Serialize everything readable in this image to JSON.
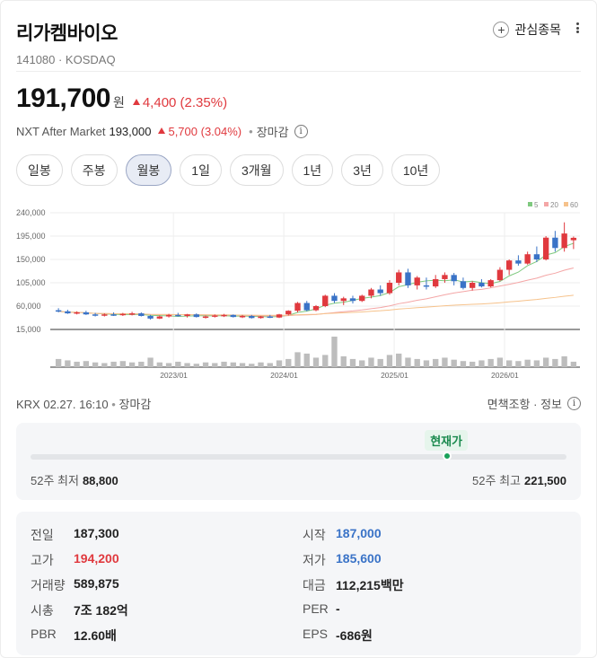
{
  "stock": {
    "name": "리가켐바이오",
    "code_market": "141080 · KOSDAQ",
    "watch_label": "관심종목",
    "price": "191,700",
    "unit": "원",
    "change": "4,400 (2.35%)",
    "nxt": {
      "label": "NXT After Market",
      "price": "193,000",
      "change": "5,700 (3.04%)",
      "status": "장마감"
    }
  },
  "tabs": [
    "일봉",
    "주봉",
    "월봉",
    "1일",
    "3개월",
    "1년",
    "3년",
    "10년"
  ],
  "active_tab": "월봉",
  "source": {
    "left": "KRX 02.27. 16:10",
    "status": "장마감",
    "right": "면책조항 · 정보"
  },
  "range52": {
    "current_label": "현재가",
    "low_label": "52주 최저",
    "low_value": "88,800",
    "high_label": "52주 최고",
    "high_value": "221,500",
    "current_fraction": 0.775
  },
  "stats": {
    "left": [
      {
        "label": "전일",
        "value": "187,300",
        "color": "normal"
      },
      {
        "label": "고가",
        "value": "194,200",
        "color": "red"
      },
      {
        "label": "거래량",
        "value": "589,875",
        "color": "normal"
      },
      {
        "label": "시총",
        "value": "7조 182억",
        "color": "normal"
      },
      {
        "label": "PBR",
        "value": "12.60배",
        "color": "normal"
      }
    ],
    "right": [
      {
        "label": "시작",
        "value": "187,000",
        "color": "blue"
      },
      {
        "label": "저가",
        "value": "185,600",
        "color": "blue"
      },
      {
        "label": "대금",
        "value": "112,215백만",
        "color": "normal"
      },
      {
        "label": "PER",
        "value": "-",
        "color": "normal"
      },
      {
        "label": "EPS",
        "value": "-686원",
        "color": "normal"
      }
    ]
  },
  "colors": {
    "up": "#e0393e",
    "down": "#3a73c7",
    "accent": "#1aa15a"
  },
  "chart_data": {
    "type": "candlestick",
    "y_ticks": [
      "240,000",
      "195,000",
      "150,000",
      "105,000",
      "60,000",
      "15,000"
    ],
    "ylim": [
      15000,
      240000
    ],
    "x_ticks": [
      "2023/01",
      "2024/01",
      "2025/01",
      "2026/01"
    ],
    "legend": [
      {
        "name": "5",
        "color": "#7fc97f"
      },
      {
        "name": "20",
        "color": "#f4a6a6"
      },
      {
        "name": "60",
        "color": "#f6c28b"
      }
    ],
    "candles": [
      [
        52000,
        56000,
        48000,
        50000
      ],
      [
        50000,
        53000,
        45000,
        46000
      ],
      [
        46000,
        50000,
        44000,
        48000
      ],
      [
        48000,
        51000,
        43000,
        44000
      ],
      [
        44000,
        47000,
        40000,
        42000
      ],
      [
        42000,
        46000,
        40000,
        44000
      ],
      [
        44000,
        48000,
        41000,
        43000
      ],
      [
        43000,
        47000,
        41000,
        45000
      ],
      [
        45000,
        49000,
        42000,
        46000
      ],
      [
        46000,
        48000,
        40000,
        41000
      ],
      [
        41000,
        43000,
        34000,
        36000
      ],
      [
        36000,
        42000,
        35000,
        40000
      ],
      [
        40000,
        45000,
        38000,
        43000
      ],
      [
        43000,
        47000,
        40000,
        41000
      ],
      [
        41000,
        45000,
        38000,
        44000
      ],
      [
        44000,
        46000,
        38000,
        39000
      ],
      [
        39000,
        42000,
        36000,
        40000
      ],
      [
        40000,
        44000,
        38000,
        42000
      ],
      [
        42000,
        45000,
        39000,
        43000
      ],
      [
        43000,
        44000,
        38000,
        39000
      ],
      [
        39000,
        43000,
        37000,
        41000
      ],
      [
        41000,
        43000,
        36000,
        37000
      ],
      [
        37000,
        41000,
        36000,
        40000
      ],
      [
        40000,
        43000,
        37000,
        38000
      ],
      [
        38000,
        45000,
        37000,
        44000
      ],
      [
        44000,
        52000,
        42000,
        51000
      ],
      [
        51000,
        68000,
        48000,
        66000
      ],
      [
        66000,
        70000,
        50000,
        52000
      ],
      [
        52000,
        62000,
        50000,
        60000
      ],
      [
        60000,
        82000,
        58000,
        80000
      ],
      [
        80000,
        85000,
        66000,
        70000
      ],
      [
        70000,
        78000,
        62000,
        75000
      ],
      [
        75000,
        80000,
        65000,
        70000
      ],
      [
        70000,
        82000,
        68000,
        80000
      ],
      [
        80000,
        95000,
        75000,
        92000
      ],
      [
        92000,
        100000,
        80000,
        85000
      ],
      [
        85000,
        110000,
        82000,
        105000
      ],
      [
        105000,
        130000,
        100000,
        125000
      ],
      [
        125000,
        132000,
        95000,
        100000
      ],
      [
        100000,
        118000,
        92000,
        115000
      ],
      [
        100000,
        115000,
        92000,
        98000
      ],
      [
        98000,
        120000,
        95000,
        112000
      ],
      [
        112000,
        125000,
        105000,
        120000
      ],
      [
        120000,
        124000,
        100000,
        108000
      ],
      [
        108000,
        115000,
        92000,
        95000
      ],
      [
        95000,
        108000,
        90000,
        105000
      ],
      [
        105000,
        112000,
        96000,
        98000
      ],
      [
        98000,
        112000,
        96000,
        110000
      ],
      [
        110000,
        135000,
        108000,
        130000
      ],
      [
        130000,
        150000,
        120000,
        148000
      ],
      [
        148000,
        158000,
        138000,
        142000
      ],
      [
        142000,
        165000,
        140000,
        160000
      ],
      [
        160000,
        175000,
        145000,
        150000
      ],
      [
        150000,
        195000,
        148000,
        192000
      ],
      [
        192000,
        205000,
        165000,
        172000
      ],
      [
        172000,
        221500,
        165000,
        200000
      ],
      [
        187000,
        194200,
        170000,
        191700
      ]
    ],
    "volume": [
      12,
      10,
      8,
      9,
      7,
      6,
      8,
      9,
      7,
      8,
      14,
      7,
      6,
      8,
      6,
      5,
      7,
      6,
      8,
      7,
      6,
      5,
      7,
      6,
      10,
      12,
      22,
      20,
      14,
      18,
      45,
      16,
      12,
      10,
      14,
      12,
      18,
      20,
      14,
      12,
      10,
      12,
      14,
      11,
      9,
      8,
      10,
      12,
      14,
      10,
      9,
      11,
      10,
      14,
      12,
      16,
      8
    ]
  }
}
